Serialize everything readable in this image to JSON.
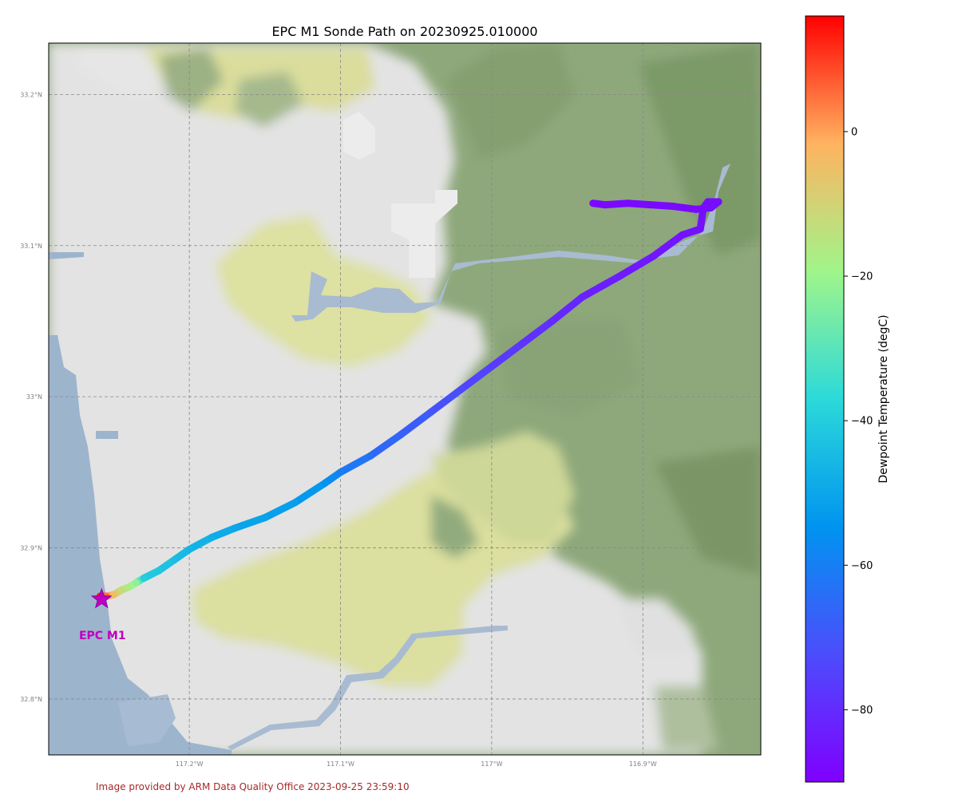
{
  "chart_data": {
    "type": "scatter",
    "title": "EPC M1 Sonde Path on 20230925.010000",
    "lon_range": [
      -117.293,
      -116.822
    ],
    "lat_range": [
      32.763,
      33.234
    ],
    "lat_ticks": [
      {
        "value": 33.2,
        "label": "33.2°N"
      },
      {
        "value": 33.1,
        "label": "33.1°N"
      },
      {
        "value": 33.0,
        "label": "33°N"
      },
      {
        "value": 32.9,
        "label": "32.9°N"
      },
      {
        "value": 32.8,
        "label": "32.8°N"
      }
    ],
    "lon_ticks": [
      {
        "value": -117.2,
        "label": "117.2°W"
      },
      {
        "value": -117.1,
        "label": "117.1°W"
      },
      {
        "value": -117.0,
        "label": "117°W"
      },
      {
        "value": -116.9,
        "label": "116.9°W"
      }
    ],
    "grid": true,
    "site": {
      "name": "EPC M1",
      "lon": -117.258,
      "lat": 32.866
    },
    "colorbar": {
      "label": "Dewpoint Temperature (degC)",
      "range": [
        -90,
        16
      ],
      "ticks": [
        0,
        -20,
        -40,
        -60,
        -80
      ],
      "colormap": "rainbow"
    },
    "path": [
      {
        "lon": -117.259,
        "lat": 32.868,
        "dewpoint": 14
      },
      {
        "lon": -117.255,
        "lat": 32.868,
        "dewpoint": 5
      },
      {
        "lon": -117.25,
        "lat": 32.869,
        "dewpoint": -5
      },
      {
        "lon": -117.245,
        "lat": 32.872,
        "dewpoint": -12
      },
      {
        "lon": -117.24,
        "lat": 32.874,
        "dewpoint": -17
      },
      {
        "lon": -117.235,
        "lat": 32.877,
        "dewpoint": -22
      },
      {
        "lon": -117.23,
        "lat": 32.88,
        "dewpoint": -40
      },
      {
        "lon": -117.22,
        "lat": 32.885,
        "dewpoint": -42
      },
      {
        "lon": -117.21,
        "lat": 32.892,
        "dewpoint": -44
      },
      {
        "lon": -117.2,
        "lat": 32.899,
        "dewpoint": -46
      },
      {
        "lon": -117.185,
        "lat": 32.907,
        "dewpoint": -48
      },
      {
        "lon": -117.17,
        "lat": 32.913,
        "dewpoint": -50
      },
      {
        "lon": -117.15,
        "lat": 32.92,
        "dewpoint": -51
      },
      {
        "lon": -117.13,
        "lat": 32.93,
        "dewpoint": -52
      },
      {
        "lon": -117.11,
        "lat": 32.943,
        "dewpoint": -55
      },
      {
        "lon": -117.1,
        "lat": 32.95,
        "dewpoint": -60
      },
      {
        "lon": -117.08,
        "lat": 32.961,
        "dewpoint": -64
      },
      {
        "lon": -117.06,
        "lat": 32.975,
        "dewpoint": -67
      },
      {
        "lon": -117.04,
        "lat": 32.99,
        "dewpoint": -70
      },
      {
        "lon": -117.02,
        "lat": 33.005,
        "dewpoint": -73
      },
      {
        "lon": -117.0,
        "lat": 33.02,
        "dewpoint": -76
      },
      {
        "lon": -116.98,
        "lat": 33.035,
        "dewpoint": -78
      },
      {
        "lon": -116.96,
        "lat": 33.05,
        "dewpoint": -80
      },
      {
        "lon": -116.94,
        "lat": 33.066,
        "dewpoint": -82
      },
      {
        "lon": -116.915,
        "lat": 33.08,
        "dewpoint": -84
      },
      {
        "lon": -116.893,
        "lat": 33.093,
        "dewpoint": -85
      },
      {
        "lon": -116.874,
        "lat": 33.107,
        "dewpoint": -86
      },
      {
        "lon": -116.862,
        "lat": 33.111,
        "dewpoint": -86
      },
      {
        "lon": -116.86,
        "lat": 33.125,
        "dewpoint": -87
      },
      {
        "lon": -116.857,
        "lat": 33.129,
        "dewpoint": -87
      },
      {
        "lon": -116.85,
        "lat": 33.129,
        "dewpoint": -87
      },
      {
        "lon": -116.855,
        "lat": 33.125,
        "dewpoint": -87
      },
      {
        "lon": -116.865,
        "lat": 33.124,
        "dewpoint": -88
      },
      {
        "lon": -116.88,
        "lat": 33.126,
        "dewpoint": -88
      },
      {
        "lon": -116.895,
        "lat": 33.127,
        "dewpoint": -88
      },
      {
        "lon": -116.91,
        "lat": 33.128,
        "dewpoint": -88
      },
      {
        "lon": -116.925,
        "lat": 33.127,
        "dewpoint": -88
      },
      {
        "lon": -116.933,
        "lat": 33.128,
        "dewpoint": -88
      }
    ]
  },
  "footer": "Image provided by ARM Data Quality Office 2023-09-25 23:59:10",
  "colors": {
    "ocean": "#9db4cd",
    "lowland": "#e3e3e3",
    "yellow": "#dfe2a6",
    "green": "#8ea87b",
    "darkgreen": "#7d9c6c",
    "river": "#a9bbd0",
    "site_marker": "#bf00bf",
    "footer_text": "#a52a2a"
  }
}
